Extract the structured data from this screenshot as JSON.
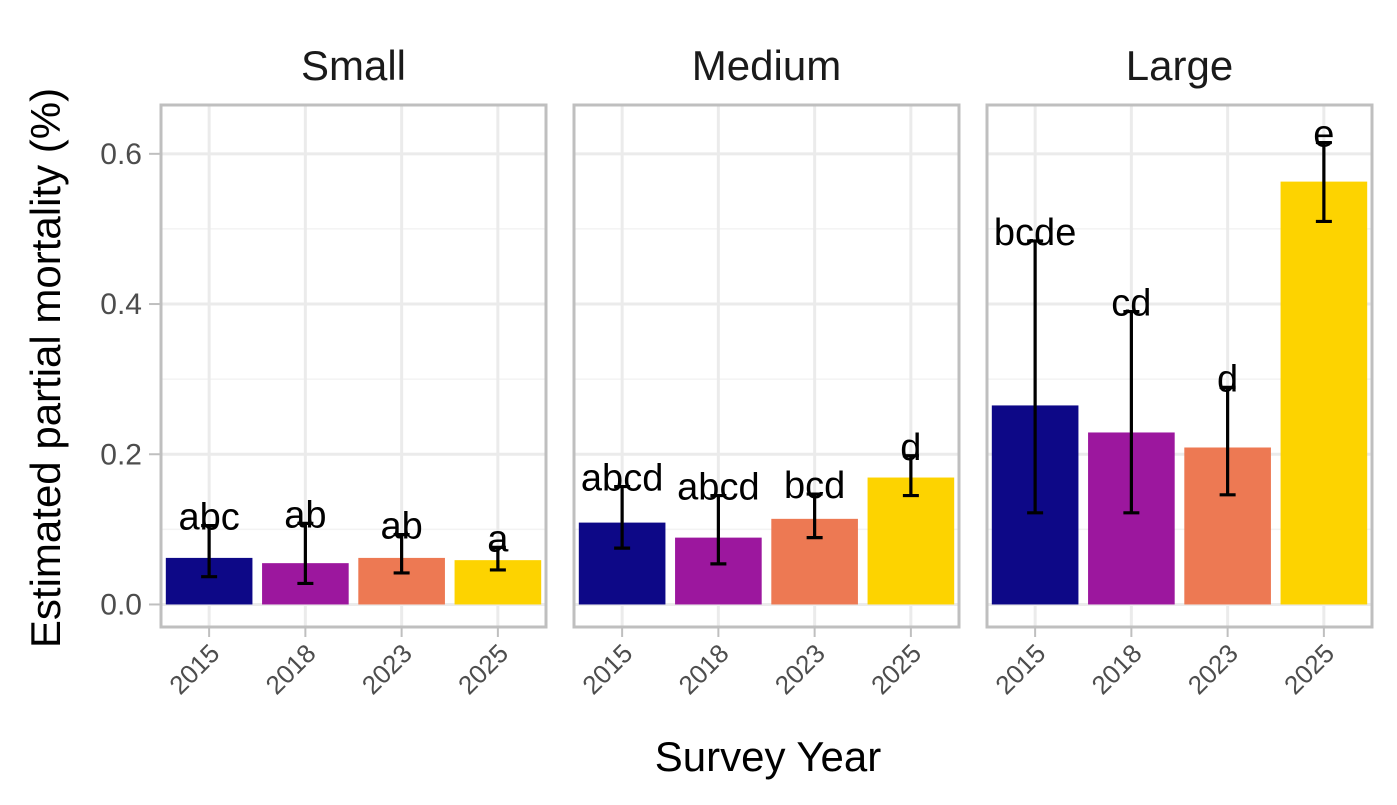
{
  "chart_data": {
    "type": "bar",
    "xlabel": "Survey Year",
    "ylabel": "Estimated partial mortality (%)",
    "ylim": [
      -0.03,
      0.665
    ],
    "yticks": [
      0.0,
      0.2,
      0.4,
      0.6
    ],
    "ytick_labels": [
      "0.0",
      "0.2",
      "0.4",
      "0.6"
    ],
    "grid": true,
    "categories": [
      "2015",
      "2018",
      "2023",
      "2025"
    ],
    "colors": [
      "#0d0887",
      "#9c179e",
      "#ed7953",
      "#fdd300"
    ],
    "panels": [
      {
        "name": "Small",
        "values": [
          0.062,
          0.055,
          0.062,
          0.059
        ],
        "lower": [
          0.037,
          0.028,
          0.042,
          0.046
        ],
        "upper": [
          0.105,
          0.108,
          0.093,
          0.076
        ],
        "letters": [
          "abc",
          "ab",
          "ab",
          "a"
        ]
      },
      {
        "name": "Medium",
        "values": [
          0.109,
          0.089,
          0.114,
          0.169
        ],
        "lower": [
          0.075,
          0.054,
          0.089,
          0.145
        ],
        "upper": [
          0.157,
          0.145,
          0.147,
          0.198
        ],
        "letters": [
          "abcd",
          "abcd",
          "bcd",
          "d"
        ]
      },
      {
        "name": "Large",
        "values": [
          0.265,
          0.229,
          0.209,
          0.563
        ],
        "lower": [
          0.122,
          0.122,
          0.146,
          0.51
        ],
        "upper": [
          0.484,
          0.39,
          0.289,
          0.615
        ],
        "letters": [
          "bcde",
          "cd",
          "d",
          "e"
        ]
      }
    ]
  }
}
